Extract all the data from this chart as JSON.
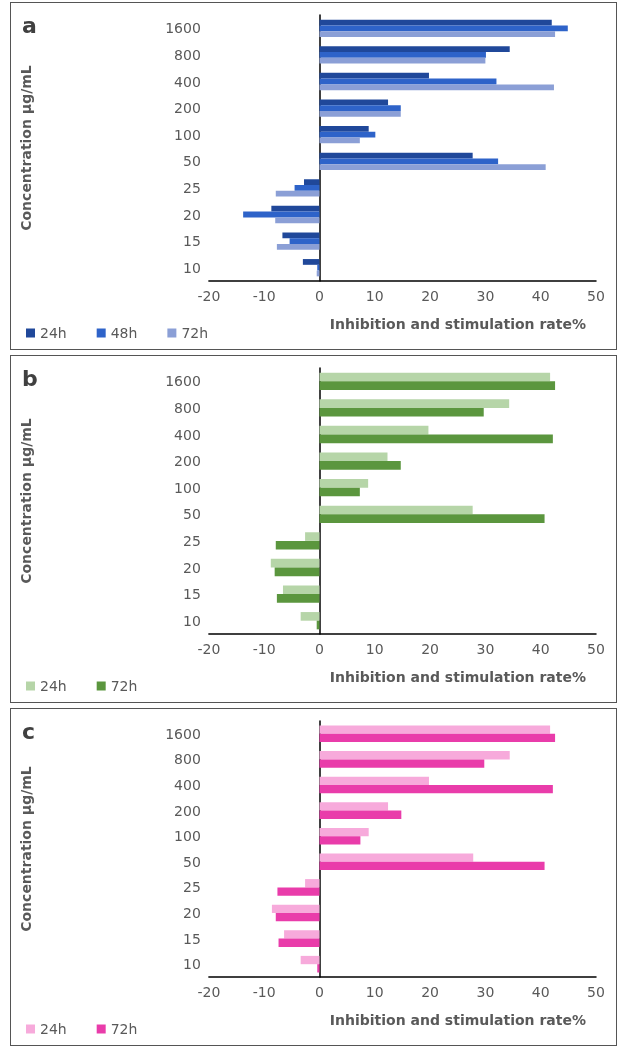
{
  "chart_data": [
    {
      "type": "bar",
      "orientation": "horizontal",
      "title": "a",
      "ylabel": "Concentration μg/mL",
      "xlabel": "Inhibition and stimulation rate%",
      "categories": [
        "1600",
        "800",
        "400",
        "200",
        "100",
        "50",
        "25",
        "20",
        "15",
        "10"
      ],
      "xlim": [
        -20,
        50
      ],
      "xticks": [
        -20,
        -10,
        0,
        10,
        20,
        30,
        40,
        50
      ],
      "legend": "bottom left",
      "series": [
        {
          "name": "24h",
          "color": "#20489a",
          "values": [
            42.0,
            34.4,
            19.8,
            12.4,
            8.9,
            27.7,
            -2.8,
            -8.7,
            -6.7,
            -3.0
          ]
        },
        {
          "name": "48h",
          "color": "#2e63c9",
          "values": [
            44.9,
            30.1,
            32.0,
            14.7,
            10.1,
            32.3,
            -4.5,
            -13.8,
            -5.4,
            -0.4
          ]
        },
        {
          "name": "72h",
          "color": "#8b9fd6",
          "values": [
            42.6,
            30.0,
            42.4,
            14.7,
            7.3,
            40.9,
            -7.9,
            -8.0,
            -7.7,
            -0.5
          ]
        }
      ]
    },
    {
      "type": "bar",
      "orientation": "horizontal",
      "title": "b",
      "ylabel": "Concentration μg/mL",
      "xlabel": "Inhibition and stimulation rate%",
      "categories": [
        "1600",
        "800",
        "400",
        "200",
        "100",
        "50",
        "25",
        "20",
        "15",
        "10"
      ],
      "xlim": [
        -20,
        50
      ],
      "xticks": [
        -20,
        -10,
        0,
        10,
        20,
        30,
        40,
        50
      ],
      "legend": "bottom left",
      "series": [
        {
          "name": "24h",
          "color": "#b6d5a8",
          "values": [
            41.7,
            34.3,
            19.7,
            12.3,
            8.8,
            27.7,
            -2.6,
            -8.8,
            -6.6,
            -3.4
          ]
        },
        {
          "name": "72h",
          "color": "#5b963e",
          "values": [
            42.6,
            29.7,
            42.2,
            14.7,
            7.3,
            40.7,
            -7.9,
            -8.1,
            -7.7,
            -0.5
          ]
        }
      ]
    },
    {
      "type": "bar",
      "orientation": "horizontal",
      "title": "c",
      "ylabel": "Concentration μg/mL",
      "xlabel": "Inhibition and stimulation rate%",
      "categories": [
        "1600",
        "800",
        "400",
        "200",
        "100",
        "50",
        "25",
        "20",
        "15",
        "10"
      ],
      "xlim": [
        -20,
        50
      ],
      "xticks": [
        -20,
        -10,
        0,
        10,
        20,
        30,
        40,
        50
      ],
      "legend": "bottom left",
      "series": [
        {
          "name": "24h",
          "color": "#f7aadb",
          "values": [
            41.7,
            34.4,
            19.8,
            12.4,
            8.9,
            27.8,
            -2.6,
            -8.6,
            -6.4,
            -3.4
          ]
        },
        {
          "name": "72h",
          "color": "#e93caa",
          "values": [
            42.6,
            29.8,
            42.2,
            14.8,
            7.4,
            40.7,
            -7.6,
            -7.9,
            -7.4,
            -0.4
          ]
        }
      ]
    }
  ]
}
